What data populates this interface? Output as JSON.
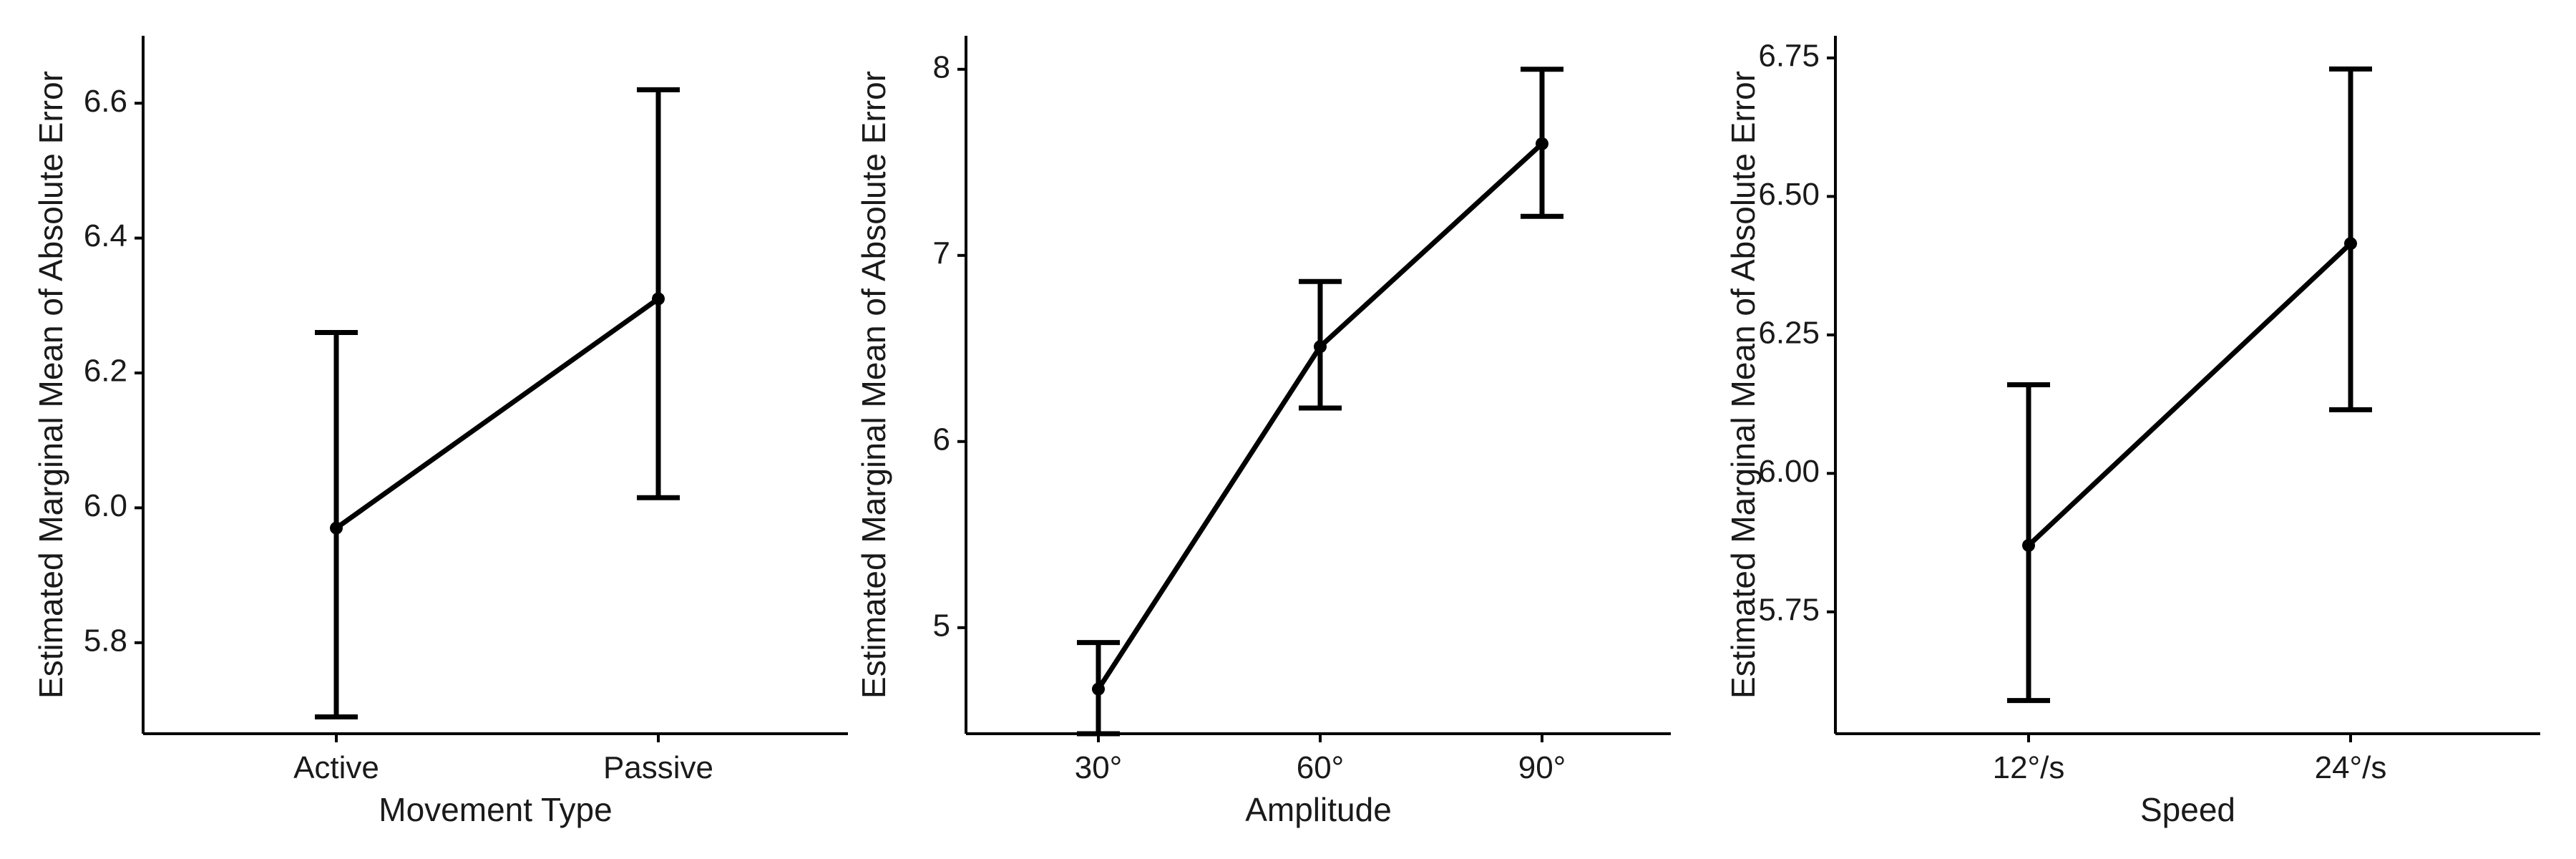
{
  "chart_data": [
    {
      "type": "line",
      "xlabel": "Movement Type",
      "ylabel": "Estimated Marginal Mean of Absolute Error",
      "categories": [
        "Active",
        "Passive"
      ],
      "values": [
        5.97,
        6.31
      ],
      "error_low": [
        5.69,
        6.015
      ],
      "error_high": [
        6.26,
        6.62
      ],
      "ylim": [
        5.665,
        6.7
      ],
      "yticks": [
        5.8,
        6.0,
        6.2,
        6.4,
        6.6
      ],
      "ytick_labels": [
        "5.8",
        "6.0",
        "6.2",
        "6.4",
        "6.6"
      ]
    },
    {
      "type": "line",
      "xlabel": "Amplitude",
      "ylabel": "Estimated Marginal Mean of Absolute Error",
      "categories": [
        "30°",
        "60°",
        "90°"
      ],
      "values": [
        4.67,
        6.51,
        7.6
      ],
      "error_low": [
        4.43,
        6.18,
        7.21
      ],
      "error_high": [
        4.92,
        6.86,
        8.0
      ],
      "ylim": [
        4.43,
        8.18
      ],
      "yticks": [
        5,
        6,
        7,
        8
      ],
      "ytick_labels": [
        "5",
        "6",
        "7",
        "8"
      ]
    },
    {
      "type": "line",
      "xlabel": "Speed",
      "ylabel": "Estimated Marginal Mean of Absolute Error",
      "categories": [
        "12°/s",
        "24°/s"
      ],
      "values": [
        5.87,
        6.415
      ],
      "error_low": [
        5.59,
        6.115
      ],
      "error_high": [
        6.16,
        6.73
      ],
      "ylim": [
        5.53,
        6.79
      ],
      "yticks": [
        5.75,
        6.0,
        6.25,
        6.5,
        6.75
      ],
      "ytick_labels": [
        "5.75",
        "6.00",
        "6.25",
        "6.50",
        "6.75"
      ]
    }
  ],
  "style": {
    "line_color": "#000000",
    "axis_color": "#000000",
    "background": "#ffffff",
    "grid": false
  }
}
